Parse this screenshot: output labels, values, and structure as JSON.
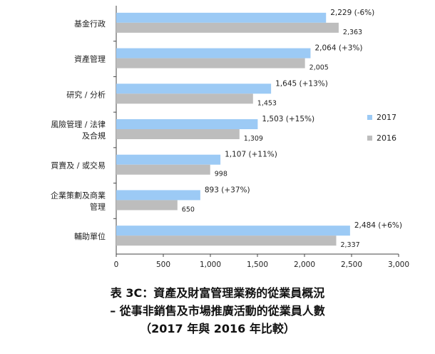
{
  "chart_data": {
    "type": "bar",
    "orientation": "horizontal",
    "categories": [
      [
        "基金行政"
      ],
      [
        "資產管理"
      ],
      [
        "研究 / 分析"
      ],
      [
        "風險管理 / 法律",
        "及合規"
      ],
      [
        "買賣及 / 或交易"
      ],
      [
        "企業策劃及商業",
        "管理"
      ],
      [
        "輔助單位"
      ]
    ],
    "series": [
      {
        "name": "2017",
        "color": "#9ccaf5",
        "values": [
          2229,
          2064,
          1645,
          1503,
          1107,
          893,
          2484
        ],
        "labels": [
          "2,229  (-6%)",
          "2,064  (+3%)",
          "1,645  (+13%)",
          "1,503  (+15%)",
          "1,107  (+11%)",
          "893  (+37%)",
          "2,484  (+6%)"
        ]
      },
      {
        "name": "2016",
        "color": "#bdbdbd",
        "values": [
          2363,
          2005,
          1453,
          1309,
          998,
          650,
          2337
        ],
        "labels": [
          "2,363",
          "2,005",
          "1,453",
          "1,309",
          "998",
          "650",
          "2,337"
        ]
      }
    ],
    "xlim": [
      0,
      3000
    ],
    "xticks": [
      0,
      500,
      1000,
      1500,
      2000,
      2500,
      3000
    ],
    "xtick_labels": [
      "0",
      "500",
      "1,000",
      "1,500",
      "2,000",
      "2,500",
      "3,000"
    ],
    "legend_position": "right",
    "grid": false
  },
  "caption": {
    "line1": "表 3C：資產及財富管理業務的從業員概況",
    "line2": "– 從事非銷售及市場推廣活動的從業員人數",
    "line3": "（2017 年與 2016 年比較）"
  }
}
